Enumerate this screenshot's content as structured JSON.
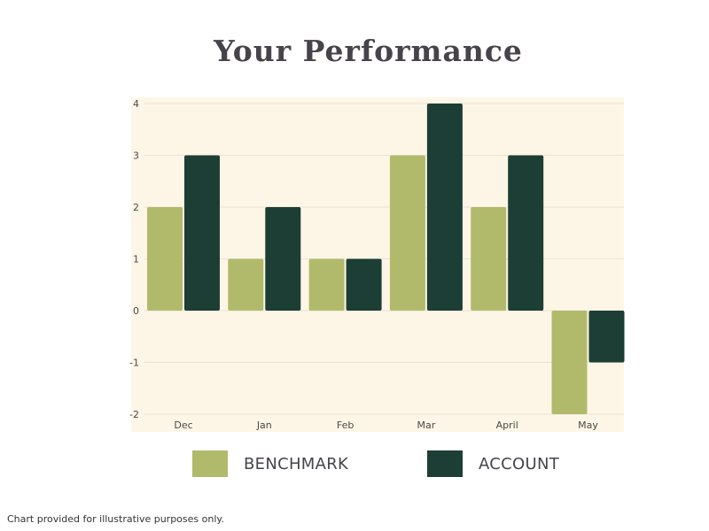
{
  "colors": {
    "plot_background": "#fdf6e6",
    "benchmark": "#b1ba6b",
    "account": "#1d3e34",
    "grid": "#e8e3d5",
    "text": "#47434a"
  },
  "chart_data": {
    "type": "bar",
    "title": "Your Performance",
    "xlabel": "",
    "ylabel": "",
    "categories": [
      "Dec",
      "Jan",
      "Feb",
      "Mar",
      "April",
      "May"
    ],
    "series": [
      {
        "name": "BENCHMARK",
        "values": [
          2,
          1,
          1,
          3,
          2,
          -2
        ]
      },
      {
        "name": "ACCOUNT",
        "values": [
          3,
          2,
          1,
          4,
          3,
          -1
        ]
      }
    ],
    "ylim": [
      -2,
      4
    ],
    "yticks": [
      4,
      3,
      2,
      1,
      0,
      -1,
      -2
    ],
    "grid": true,
    "legend": "bottom"
  },
  "footnote": "Chart provided for illustrative purposes only."
}
